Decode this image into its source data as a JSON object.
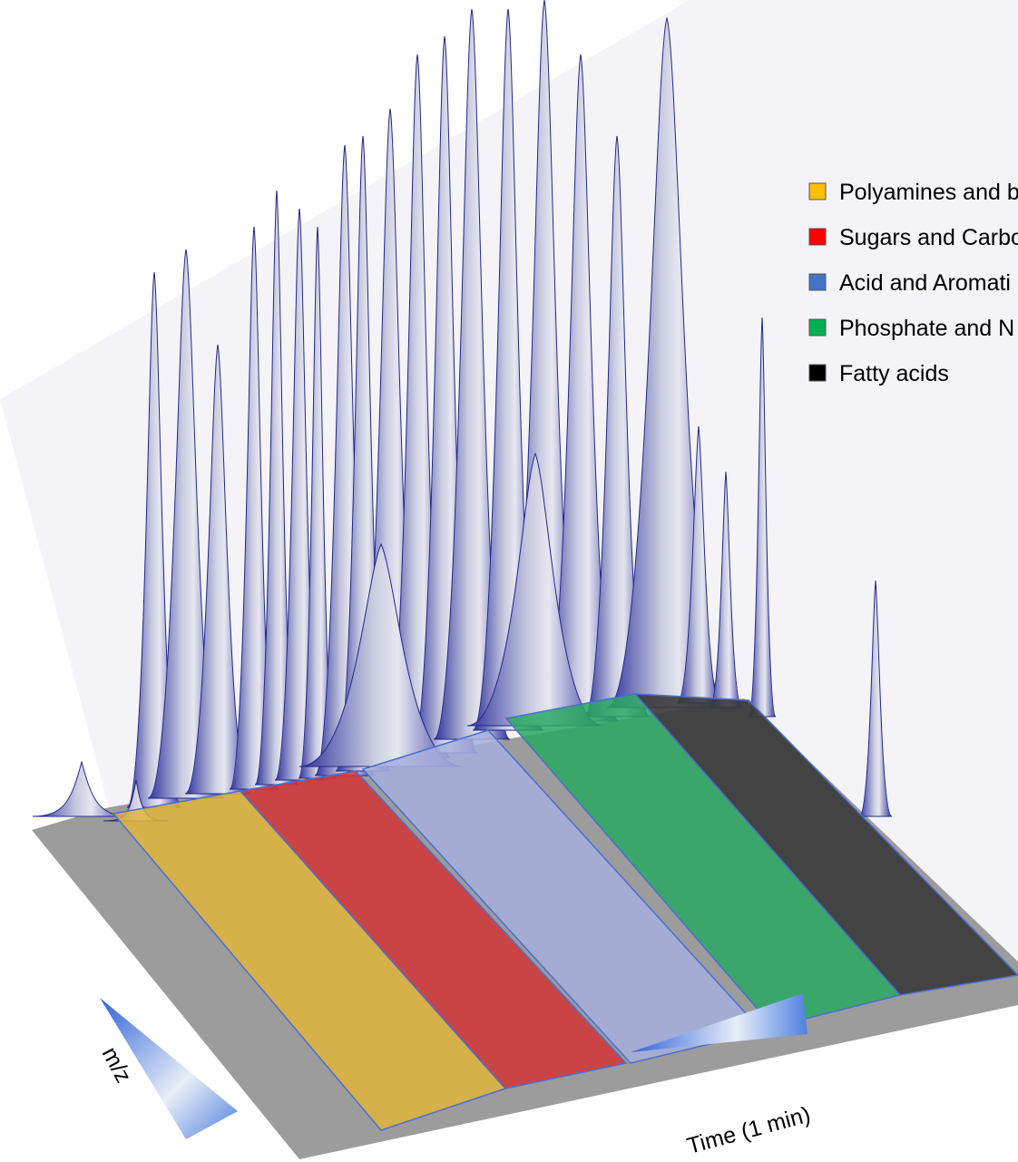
{
  "legend": [
    {
      "label": "Polyamines and b",
      "color": "#ffc000"
    },
    {
      "label": "Sugars and Carbo",
      "color": "#ff0000"
    },
    {
      "label": "Acid and Aromati",
      "color": "#4472c4"
    },
    {
      "label": "Phosphate and N",
      "color": "#00b050"
    },
    {
      "label": "Fatty acids",
      "color": "#000000"
    }
  ],
  "axes": {
    "x_label": "Time (1 min)",
    "y_label": "m/z"
  }
}
